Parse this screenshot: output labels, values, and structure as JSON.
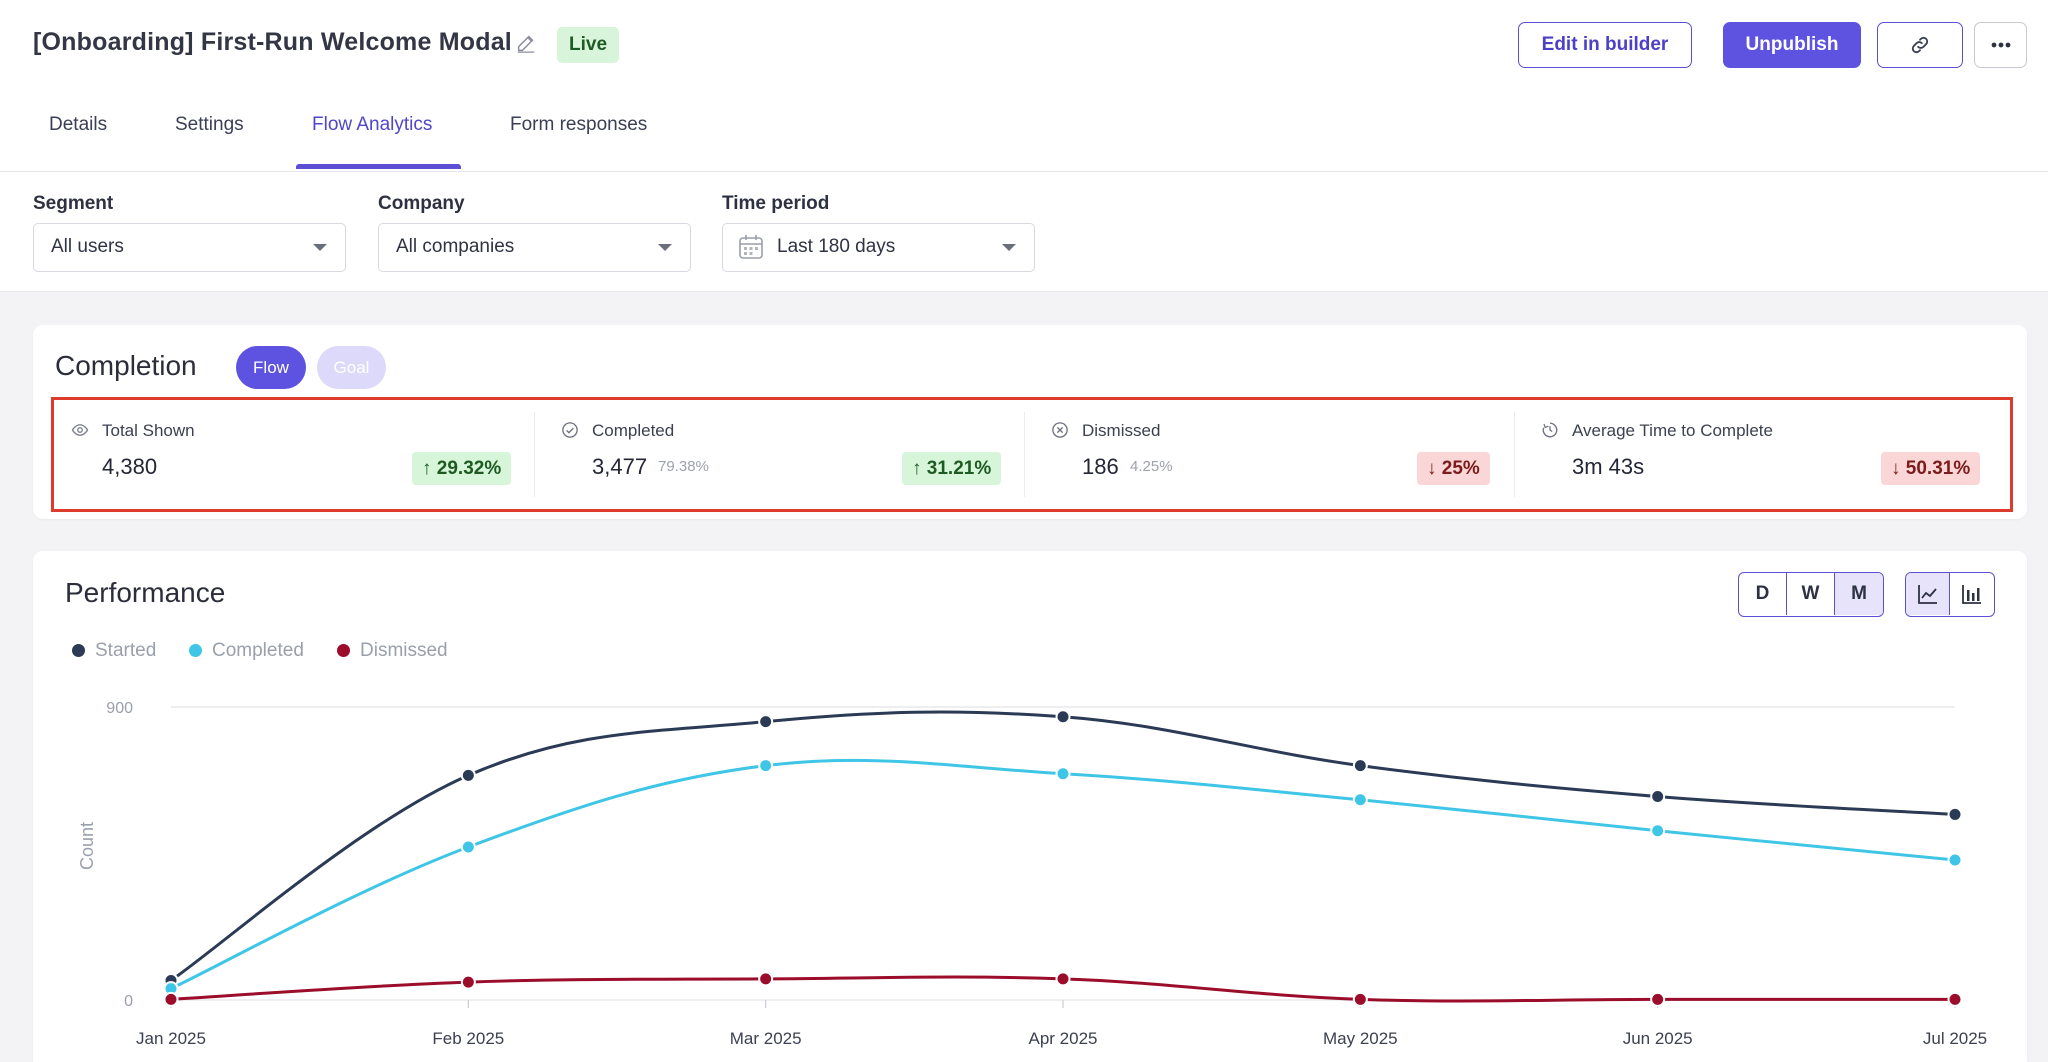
{
  "header": {
    "title": "[Onboarding] First-Run Welcome Modal",
    "status": "Live",
    "edit_builder_label": "Edit in builder",
    "unpublish_label": "Unpublish"
  },
  "tabs": [
    {
      "label": "Details"
    },
    {
      "label": "Settings"
    },
    {
      "label": "Flow Analytics",
      "active": true
    },
    {
      "label": "Form responses"
    }
  ],
  "filters": {
    "segment": {
      "label": "Segment",
      "value": "All users"
    },
    "company": {
      "label": "Company",
      "value": "All companies"
    },
    "time_period": {
      "label": "Time period",
      "value": "Last 180 days"
    }
  },
  "completion": {
    "title": "Completion",
    "toggle": {
      "flow": "Flow",
      "goal": "Goal"
    },
    "metrics": [
      {
        "label": "Total Shown",
        "value": "4,380",
        "pct": "",
        "delta": "29.32%",
        "direction": "up",
        "icon": "eye-icon"
      },
      {
        "label": "Completed",
        "value": "3,477",
        "pct": "79.38%",
        "delta": "31.21%",
        "direction": "up",
        "icon": "check-circle-icon"
      },
      {
        "label": "Dismissed",
        "value": "186",
        "pct": "4.25%",
        "delta": "25%",
        "direction": "down",
        "icon": "x-circle-icon"
      },
      {
        "label": "Average Time to Complete",
        "value": "3m 43s",
        "pct": "",
        "delta": "50.31%",
        "direction": "down",
        "icon": "timer-icon"
      }
    ]
  },
  "performance": {
    "title": "Performance",
    "granularity": {
      "options": [
        "D",
        "W",
        "M"
      ],
      "selected": "M"
    },
    "chart_types": [
      "line",
      "bar"
    ],
    "selected_chart_type": "line"
  },
  "colors": {
    "accent": "#5e52e0",
    "started": "#2b3a55",
    "completed": "#3fc6e6",
    "dismissed": "#9b0d2a"
  },
  "chart_data": {
    "type": "line",
    "x": [
      "Jan 2025",
      "Feb 2025",
      "Mar 2025",
      "Apr 2025",
      "May 2025",
      "Jun 2025",
      "Jul 2025"
    ],
    "ylabel": "Count",
    "ylim": [
      0,
      900
    ],
    "yticks": [
      0,
      900
    ],
    "series": [
      {
        "name": "Started",
        "values": [
          60,
          690,
          855,
          870,
          720,
          625,
          570
        ]
      },
      {
        "name": "Completed",
        "values": [
          35,
          470,
          720,
          695,
          615,
          520,
          430
        ]
      },
      {
        "name": "Dismissed",
        "values": [
          2,
          55,
          65,
          65,
          2,
          2,
          2
        ]
      }
    ],
    "legend": "top-left",
    "grid": "horizontal"
  }
}
